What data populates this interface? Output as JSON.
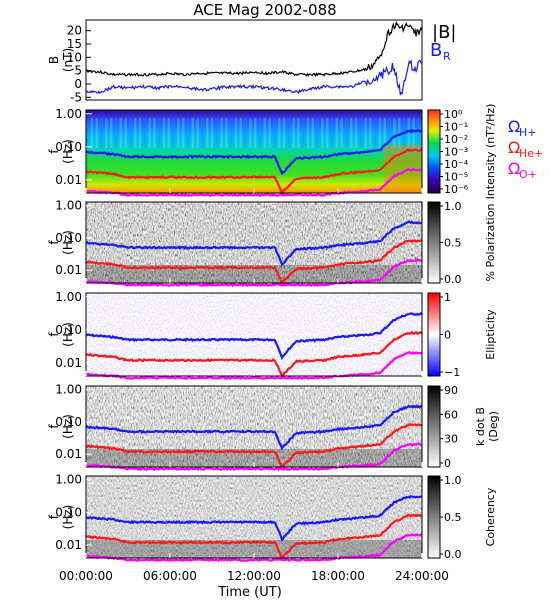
{
  "title": "ACE Mag 2002-088",
  "colors": {
    "total": "#000000",
    "radial": "#1a1aff",
    "h": "#1a1aff",
    "he": "#ff1a1a",
    "o": "#ff00ff"
  },
  "legend": {
    "b_total": "|B|",
    "b_radial": "B",
    "b_radial_sub": "R",
    "omega": "Ω",
    "h_sub": "H+",
    "he_sub": "He+",
    "o_sub": "O+"
  },
  "xaxis": {
    "label": "Time (UT)",
    "ticks": [
      "00:00:00",
      "06:00:00",
      "12:00:00",
      "18:00:00",
      "24:00:00"
    ]
  },
  "freq_ticks": [
    "1.00",
    "0.10",
    "0.01"
  ],
  "chart_data": [
    {
      "type": "line",
      "panel": "magnetic-field",
      "ylabel": "B",
      "yunit": "(nT)",
      "ylim": [
        -6,
        24
      ],
      "yticks": [
        "20",
        "15",
        "10",
        "5",
        "0",
        "-5"
      ],
      "x_hours": [
        0,
        1,
        2,
        3,
        4,
        5,
        6,
        7,
        8,
        9,
        10,
        11,
        12,
        13,
        14,
        15,
        16,
        17,
        18,
        19,
        20,
        20.5,
        21,
        21.5,
        22,
        22.5,
        23,
        23.5,
        24
      ],
      "series": [
        {
          "name": "|B|",
          "values": [
            5,
            4.5,
            3.5,
            3.5,
            3.5,
            3.5,
            4,
            3.5,
            4,
            4,
            4,
            4,
            4.5,
            4,
            4.5,
            3.5,
            3.5,
            3.5,
            4,
            4.5,
            5.5,
            7,
            10,
            18,
            22,
            21,
            22,
            19,
            20
          ]
        },
        {
          "name": "B_R",
          "values": [
            -3,
            -3,
            -1,
            -1.5,
            -1,
            -1.5,
            -1,
            -1,
            -2,
            -2,
            -1,
            -1,
            -1,
            -1.5,
            -2,
            -3,
            -2,
            -1,
            -1,
            -1,
            1,
            2,
            3,
            5,
            7,
            -5,
            8,
            6,
            8
          ]
        }
      ]
    },
    {
      "type": "heatmap",
      "panel": "intensity",
      "cbar_label": "Intensity (nT²/Hz)",
      "cbar_ticks": [
        "10⁰",
        "10⁻¹",
        "10⁻²",
        "10⁻³",
        "10⁻⁴",
        "10⁻⁵",
        "10⁻⁶"
      ]
    },
    {
      "type": "heatmap",
      "panel": "polarization",
      "cbar_label": "% Polarization",
      "cbar_ticks": [
        "1.0",
        "0.5",
        "0.0"
      ]
    },
    {
      "type": "heatmap",
      "panel": "ellipticity",
      "cbar_label": "Ellipticity",
      "cbar_ticks": [
        "1",
        "0",
        "−1"
      ]
    },
    {
      "type": "heatmap",
      "panel": "k-dot-b",
      "cbar_label": "k dot B",
      "cbar_label2": "(Deg)",
      "cbar_ticks": [
        "90",
        "60",
        "30",
        "0"
      ]
    },
    {
      "type": "heatmap",
      "panel": "coherency",
      "cbar_label": "Coherency",
      "cbar_ticks": [
        "1.0",
        "0.5",
        "0.0"
      ]
    },
    {
      "type": "line",
      "panel": "cyclotron-frequencies",
      "ylabel": "f",
      "yunit": "(Hz)",
      "yscale": "log",
      "ylim": [
        0.004,
        1.3
      ],
      "x_hours": [
        0,
        2,
        3,
        6,
        9,
        12,
        13.5,
        14,
        15,
        17,
        18,
        20,
        21,
        22,
        23,
        24
      ],
      "series": [
        {
          "name": "Ω_H+",
          "values": [
            0.07,
            0.06,
            0.05,
            0.05,
            0.05,
            0.05,
            0.05,
            0.015,
            0.045,
            0.05,
            0.06,
            0.07,
            0.08,
            0.2,
            0.3,
            0.3
          ]
        },
        {
          "name": "Ω_He+",
          "values": [
            0.018,
            0.015,
            0.012,
            0.012,
            0.012,
            0.012,
            0.012,
            0.004,
            0.011,
            0.012,
            0.015,
            0.018,
            0.02,
            0.05,
            0.08,
            0.08
          ]
        },
        {
          "name": "Ω_O+",
          "values": [
            0.0045,
            0.004,
            0.0035,
            0.0035,
            0.0035,
            0.0035,
            0.0035,
            0.0035,
            0.0035,
            0.0035,
            0.004,
            0.0045,
            0.005,
            0.013,
            0.02,
            0.02
          ]
        }
      ]
    }
  ]
}
